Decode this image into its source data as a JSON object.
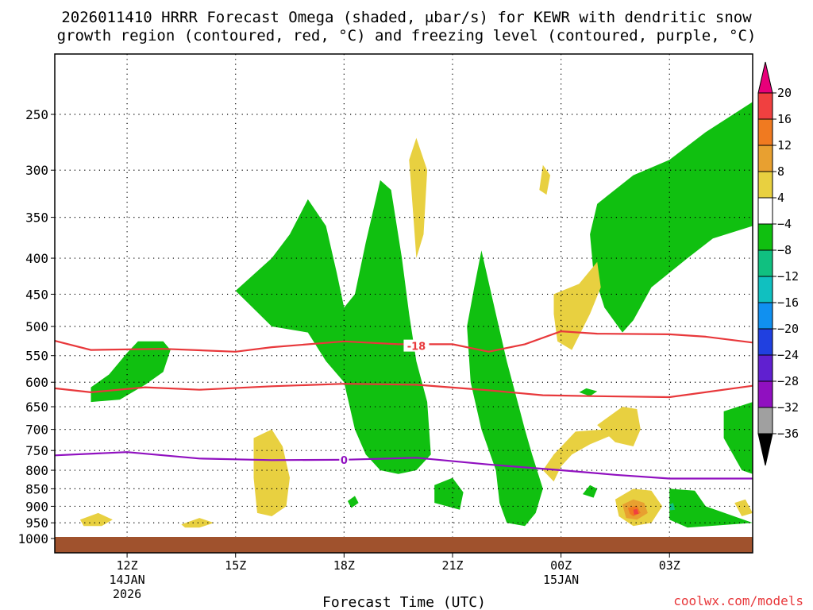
{
  "title_line1": "2026011410 HRRR Forecast Omega (shaded, μbar/s) for KEWR with dendritic snow",
  "title_line2": "growth region (contoured, red, °C) and freezing level (contoured, purple, °C)",
  "xlabel": "Forecast Time (UTC)",
  "credit": "coolwx.com/models",
  "chart_data": {
    "type": "heatmap",
    "description_axis_y": "pressure (mb), log-pressure scale",
    "yticks": [
      250,
      300,
      350,
      400,
      450,
      500,
      550,
      600,
      650,
      700,
      750,
      800,
      850,
      900,
      950,
      1000
    ],
    "ylim": [
      1000,
      200
    ],
    "x_start_hour": 10,
    "x_end_hour": 29.3,
    "xticks": [
      {
        "hour": 12,
        "label": "12Z",
        "sub1": "14JAN",
        "sub2": "2026"
      },
      {
        "hour": 15,
        "label": "15Z",
        "sub1": "",
        "sub2": ""
      },
      {
        "hour": 18,
        "label": "18Z",
        "sub1": "",
        "sub2": ""
      },
      {
        "hour": 21,
        "label": "21Z",
        "sub1": "",
        "sub2": ""
      },
      {
        "hour": 24,
        "label": "00Z",
        "sub1": "15JAN",
        "sub2": ""
      },
      {
        "hour": 27,
        "label": "03Z",
        "sub1": "",
        "sub2": ""
      }
    ],
    "grid": true,
    "colorbar": {
      "labels": [
        "20",
        "16",
        "12",
        "8",
        "4",
        "−4",
        "−8",
        "−12",
        "−16",
        "−20",
        "−24",
        "−28",
        "−32",
        "−36"
      ],
      "colors": [
        "#e8007a",
        "#f04040",
        "#f07a20",
        "#e8a030",
        "#e8d040",
        "#ffffff",
        "#10c010",
        "#10c080",
        "#10c0c0",
        "#1090f0",
        "#2040e0",
        "#6020d0",
        "#9010c0",
        "#a0a0a0",
        "#000000"
      ]
    },
    "contour_dendritic_min_labels": [
      "-18"
    ],
    "contour_dendritic_colors": "#e8383b",
    "contour_freezing_labels": [
      "0"
    ],
    "contour_freezing_color": "#9010c0",
    "terrain_color": "#a0522d",
    "dendritic_upper": [
      {
        "hour": 10.0,
        "p": 524
      },
      {
        "hour": 11.0,
        "p": 540
      },
      {
        "hour": 13.0,
        "p": 538
      },
      {
        "hour": 15.0,
        "p": 543
      },
      {
        "hour": 16.0,
        "p": 535
      },
      {
        "hour": 18.0,
        "p": 525
      },
      {
        "hour": 19.5,
        "p": 530
      },
      {
        "hour": 21.0,
        "p": 530
      },
      {
        "hour": 22.0,
        "p": 543
      },
      {
        "hour": 23.0,
        "p": 530
      },
      {
        "hour": 24.0,
        "p": 508
      },
      {
        "hour": 25.0,
        "p": 512
      },
      {
        "hour": 27.0,
        "p": 513
      },
      {
        "hour": 28.0,
        "p": 517
      },
      {
        "hour": 29.3,
        "p": 527
      }
    ],
    "dendritic_lower": [
      {
        "hour": 10.0,
        "p": 612
      },
      {
        "hour": 11.0,
        "p": 620
      },
      {
        "hour": 12.5,
        "p": 610
      },
      {
        "hour": 14.0,
        "p": 615
      },
      {
        "hour": 16.0,
        "p": 608
      },
      {
        "hour": 18.0,
        "p": 603
      },
      {
        "hour": 20.0,
        "p": 605
      },
      {
        "hour": 22.0,
        "p": 616
      },
      {
        "hour": 23.5,
        "p": 626
      },
      {
        "hour": 25.0,
        "p": 628
      },
      {
        "hour": 27.0,
        "p": 630
      },
      {
        "hour": 29.3,
        "p": 607
      }
    ],
    "freezing_level": [
      {
        "hour": 10.0,
        "p": 762
      },
      {
        "hour": 12.0,
        "p": 754
      },
      {
        "hour": 14.0,
        "p": 770
      },
      {
        "hour": 16.0,
        "p": 774
      },
      {
        "hour": 18.0,
        "p": 773
      },
      {
        "hour": 20.0,
        "p": 768
      },
      {
        "hour": 22.0,
        "p": 785
      },
      {
        "hour": 24.0,
        "p": 800
      },
      {
        "hour": 25.5,
        "p": 812
      },
      {
        "hour": 27.0,
        "p": 822
      },
      {
        "hour": 29.3,
        "p": 822
      }
    ],
    "omega_regions": [
      {
        "level": -4,
        "color": "#10c010",
        "points": [
          [
            11.0,
            610
          ],
          [
            11.5,
            585
          ],
          [
            12.0,
            545
          ],
          [
            12.3,
            525
          ],
          [
            13.0,
            525
          ],
          [
            13.2,
            540
          ],
          [
            13.0,
            580
          ],
          [
            12.5,
            605
          ],
          [
            11.8,
            635
          ],
          [
            11.0,
            640
          ]
        ]
      },
      {
        "level": -4,
        "color": "#10c010",
        "points": [
          [
            15.0,
            445
          ],
          [
            16.0,
            400
          ],
          [
            16.5,
            370
          ],
          [
            17.0,
            330
          ],
          [
            17.5,
            360
          ],
          [
            17.8,
            420
          ],
          [
            18.0,
            470
          ],
          [
            18.3,
            450
          ],
          [
            18.6,
            380
          ],
          [
            19.0,
            310
          ],
          [
            19.3,
            320
          ],
          [
            19.6,
            400
          ],
          [
            19.8,
            480
          ],
          [
            20.0,
            560
          ],
          [
            20.3,
            640
          ],
          [
            20.4,
            760
          ],
          [
            20.0,
            800
          ],
          [
            19.5,
            810
          ],
          [
            19.0,
            800
          ],
          [
            18.6,
            760
          ],
          [
            18.3,
            700
          ],
          [
            18.0,
            600
          ],
          [
            17.5,
            560
          ],
          [
            17.0,
            510
          ],
          [
            16.0,
            500
          ]
        ]
      },
      {
        "level": -4,
        "color": "#10c010",
        "points": [
          [
            20.5,
            840
          ],
          [
            21.0,
            820
          ],
          [
            21.3,
            860
          ],
          [
            21.2,
            910
          ],
          [
            20.5,
            890
          ]
        ]
      },
      {
        "level": -4,
        "color": "#10c010",
        "points": [
          [
            21.8,
            390
          ],
          [
            22.2,
            480
          ],
          [
            22.5,
            560
          ],
          [
            22.8,
            640
          ],
          [
            23.0,
            700
          ],
          [
            23.2,
            760
          ],
          [
            23.5,
            850
          ],
          [
            23.3,
            920
          ],
          [
            23.0,
            960
          ],
          [
            22.5,
            950
          ],
          [
            22.3,
            890
          ],
          [
            22.2,
            800
          ],
          [
            21.8,
            700
          ],
          [
            21.5,
            600
          ],
          [
            21.4,
            500
          ],
          [
            21.6,
            440
          ]
        ]
      },
      {
        "level": -4,
        "color": "#10c010",
        "points": [
          [
            18.1,
            885
          ],
          [
            18.3,
            870
          ],
          [
            18.4,
            890
          ],
          [
            18.2,
            905
          ]
        ]
      },
      {
        "level": -4,
        "color": "#10c010",
        "points": [
          [
            25.0,
            335
          ],
          [
            26.0,
            305
          ],
          [
            27.0,
            290
          ],
          [
            28.0,
            265
          ],
          [
            29.3,
            240
          ],
          [
            29.3,
            360
          ],
          [
            28.2,
            375
          ],
          [
            27.5,
            400
          ],
          [
            26.5,
            440
          ],
          [
            26.0,
            490
          ],
          [
            25.7,
            510
          ],
          [
            25.2,
            470
          ],
          [
            24.9,
            420
          ],
          [
            24.8,
            370
          ]
        ]
      },
      {
        "level": -4,
        "color": "#10c010",
        "points": [
          [
            24.7,
            612
          ],
          [
            25.0,
            618
          ],
          [
            24.8,
            628
          ],
          [
            24.5,
            620
          ]
        ]
      },
      {
        "level": -4,
        "color": "#10c010",
        "points": [
          [
            24.8,
            840
          ],
          [
            25.0,
            850
          ],
          [
            24.9,
            875
          ],
          [
            24.6,
            865
          ]
        ]
      },
      {
        "level": -4,
        "color": "#10c010",
        "points": [
          [
            28.5,
            660
          ],
          [
            29.3,
            640
          ],
          [
            29.3,
            810
          ],
          [
            29.0,
            800
          ],
          [
            28.5,
            720
          ]
        ]
      },
      {
        "level": -4,
        "color": "#10c010",
        "points": [
          [
            27.0,
            850
          ],
          [
            27.7,
            855
          ],
          [
            28.0,
            900
          ],
          [
            29.3,
            950
          ],
          [
            27.5,
            965
          ],
          [
            27.0,
            940
          ]
        ]
      },
      {
        "level": 4,
        "color": "#e8d040",
        "points": [
          [
            20.0,
            270
          ],
          [
            20.3,
            300
          ],
          [
            20.2,
            370
          ],
          [
            20.0,
            400
          ],
          [
            19.9,
            340
          ],
          [
            19.8,
            290
          ]
        ]
      },
      {
        "level": 4,
        "color": "#e8d040",
        "points": [
          [
            23.5,
            295
          ],
          [
            23.7,
            305
          ],
          [
            23.6,
            325
          ],
          [
            23.4,
            320
          ]
        ]
      },
      {
        "level": 4,
        "color": "#e8d040",
        "points": [
          [
            23.8,
            450
          ],
          [
            24.5,
            435
          ],
          [
            25.0,
            405
          ],
          [
            25.1,
            440
          ],
          [
            24.8,
            480
          ],
          [
            24.3,
            540
          ],
          [
            23.9,
            525
          ],
          [
            23.8,
            480
          ]
        ]
      },
      {
        "level": 4,
        "color": "#e8d040",
        "points": [
          [
            23.5,
            800
          ],
          [
            23.8,
            760
          ],
          [
            24.4,
            705
          ],
          [
            25.2,
            700
          ],
          [
            25.5,
            710
          ],
          [
            24.8,
            735
          ],
          [
            24.3,
            760
          ],
          [
            24.0,
            790
          ],
          [
            23.8,
            830
          ]
        ]
      },
      {
        "level": 4,
        "color": "#e8d040",
        "points": [
          [
            25.0,
            690
          ],
          [
            25.7,
            650
          ],
          [
            26.1,
            655
          ],
          [
            26.2,
            700
          ],
          [
            26.0,
            740
          ],
          [
            25.5,
            730
          ]
        ]
      },
      {
        "level": 4,
        "color": "#e8d040",
        "points": [
          [
            15.5,
            720
          ],
          [
            16.0,
            700
          ],
          [
            16.3,
            740
          ],
          [
            16.5,
            820
          ],
          [
            16.4,
            900
          ],
          [
            16.0,
            930
          ],
          [
            15.6,
            920
          ],
          [
            15.5,
            820
          ]
        ]
      },
      {
        "level": 4,
        "color": "#e8d040",
        "points": [
          [
            10.7,
            940
          ],
          [
            11.2,
            920
          ],
          [
            11.6,
            940
          ],
          [
            11.3,
            960
          ],
          [
            10.8,
            960
          ]
        ]
      },
      {
        "level": 4,
        "color": "#e8d040",
        "points": [
          [
            13.5,
            955
          ],
          [
            14.0,
            935
          ],
          [
            14.4,
            950
          ],
          [
            14.0,
            965
          ],
          [
            13.6,
            965
          ]
        ]
      },
      {
        "level": 4,
        "color": "#e8d040",
        "points": [
          [
            25.5,
            880
          ],
          [
            26.0,
            850
          ],
          [
            26.5,
            855
          ],
          [
            26.8,
            900
          ],
          [
            26.5,
            950
          ],
          [
            26.0,
            960
          ],
          [
            25.6,
            930
          ]
        ]
      },
      {
        "level": 4,
        "color": "#e8d040",
        "points": [
          [
            28.8,
            890
          ],
          [
            29.1,
            880
          ],
          [
            29.3,
            920
          ],
          [
            29.0,
            930
          ]
        ]
      },
      {
        "level": 8,
        "color": "#e8a030",
        "points": [
          [
            25.7,
            895
          ],
          [
            26.0,
            880
          ],
          [
            26.3,
            890
          ],
          [
            26.4,
            920
          ],
          [
            26.1,
            940
          ],
          [
            25.8,
            935
          ]
        ]
      },
      {
        "level": 12,
        "color": "#f07a20",
        "points": [
          [
            25.85,
            905
          ],
          [
            26.1,
            898
          ],
          [
            26.2,
            920
          ],
          [
            26.0,
            930
          ],
          [
            25.9,
            922
          ]
        ]
      },
      {
        "level": 16,
        "color": "#f04040",
        "points": [
          [
            26.0,
            910
          ],
          [
            26.1,
            908
          ],
          [
            26.15,
            922
          ],
          [
            26.02,
            925
          ]
        ]
      },
      {
        "level": -8,
        "color": "#10c080",
        "points": [
          [
            27.0,
            895
          ],
          [
            27.1,
            890
          ],
          [
            27.15,
            910
          ],
          [
            27.02,
            912
          ]
        ]
      }
    ]
  }
}
